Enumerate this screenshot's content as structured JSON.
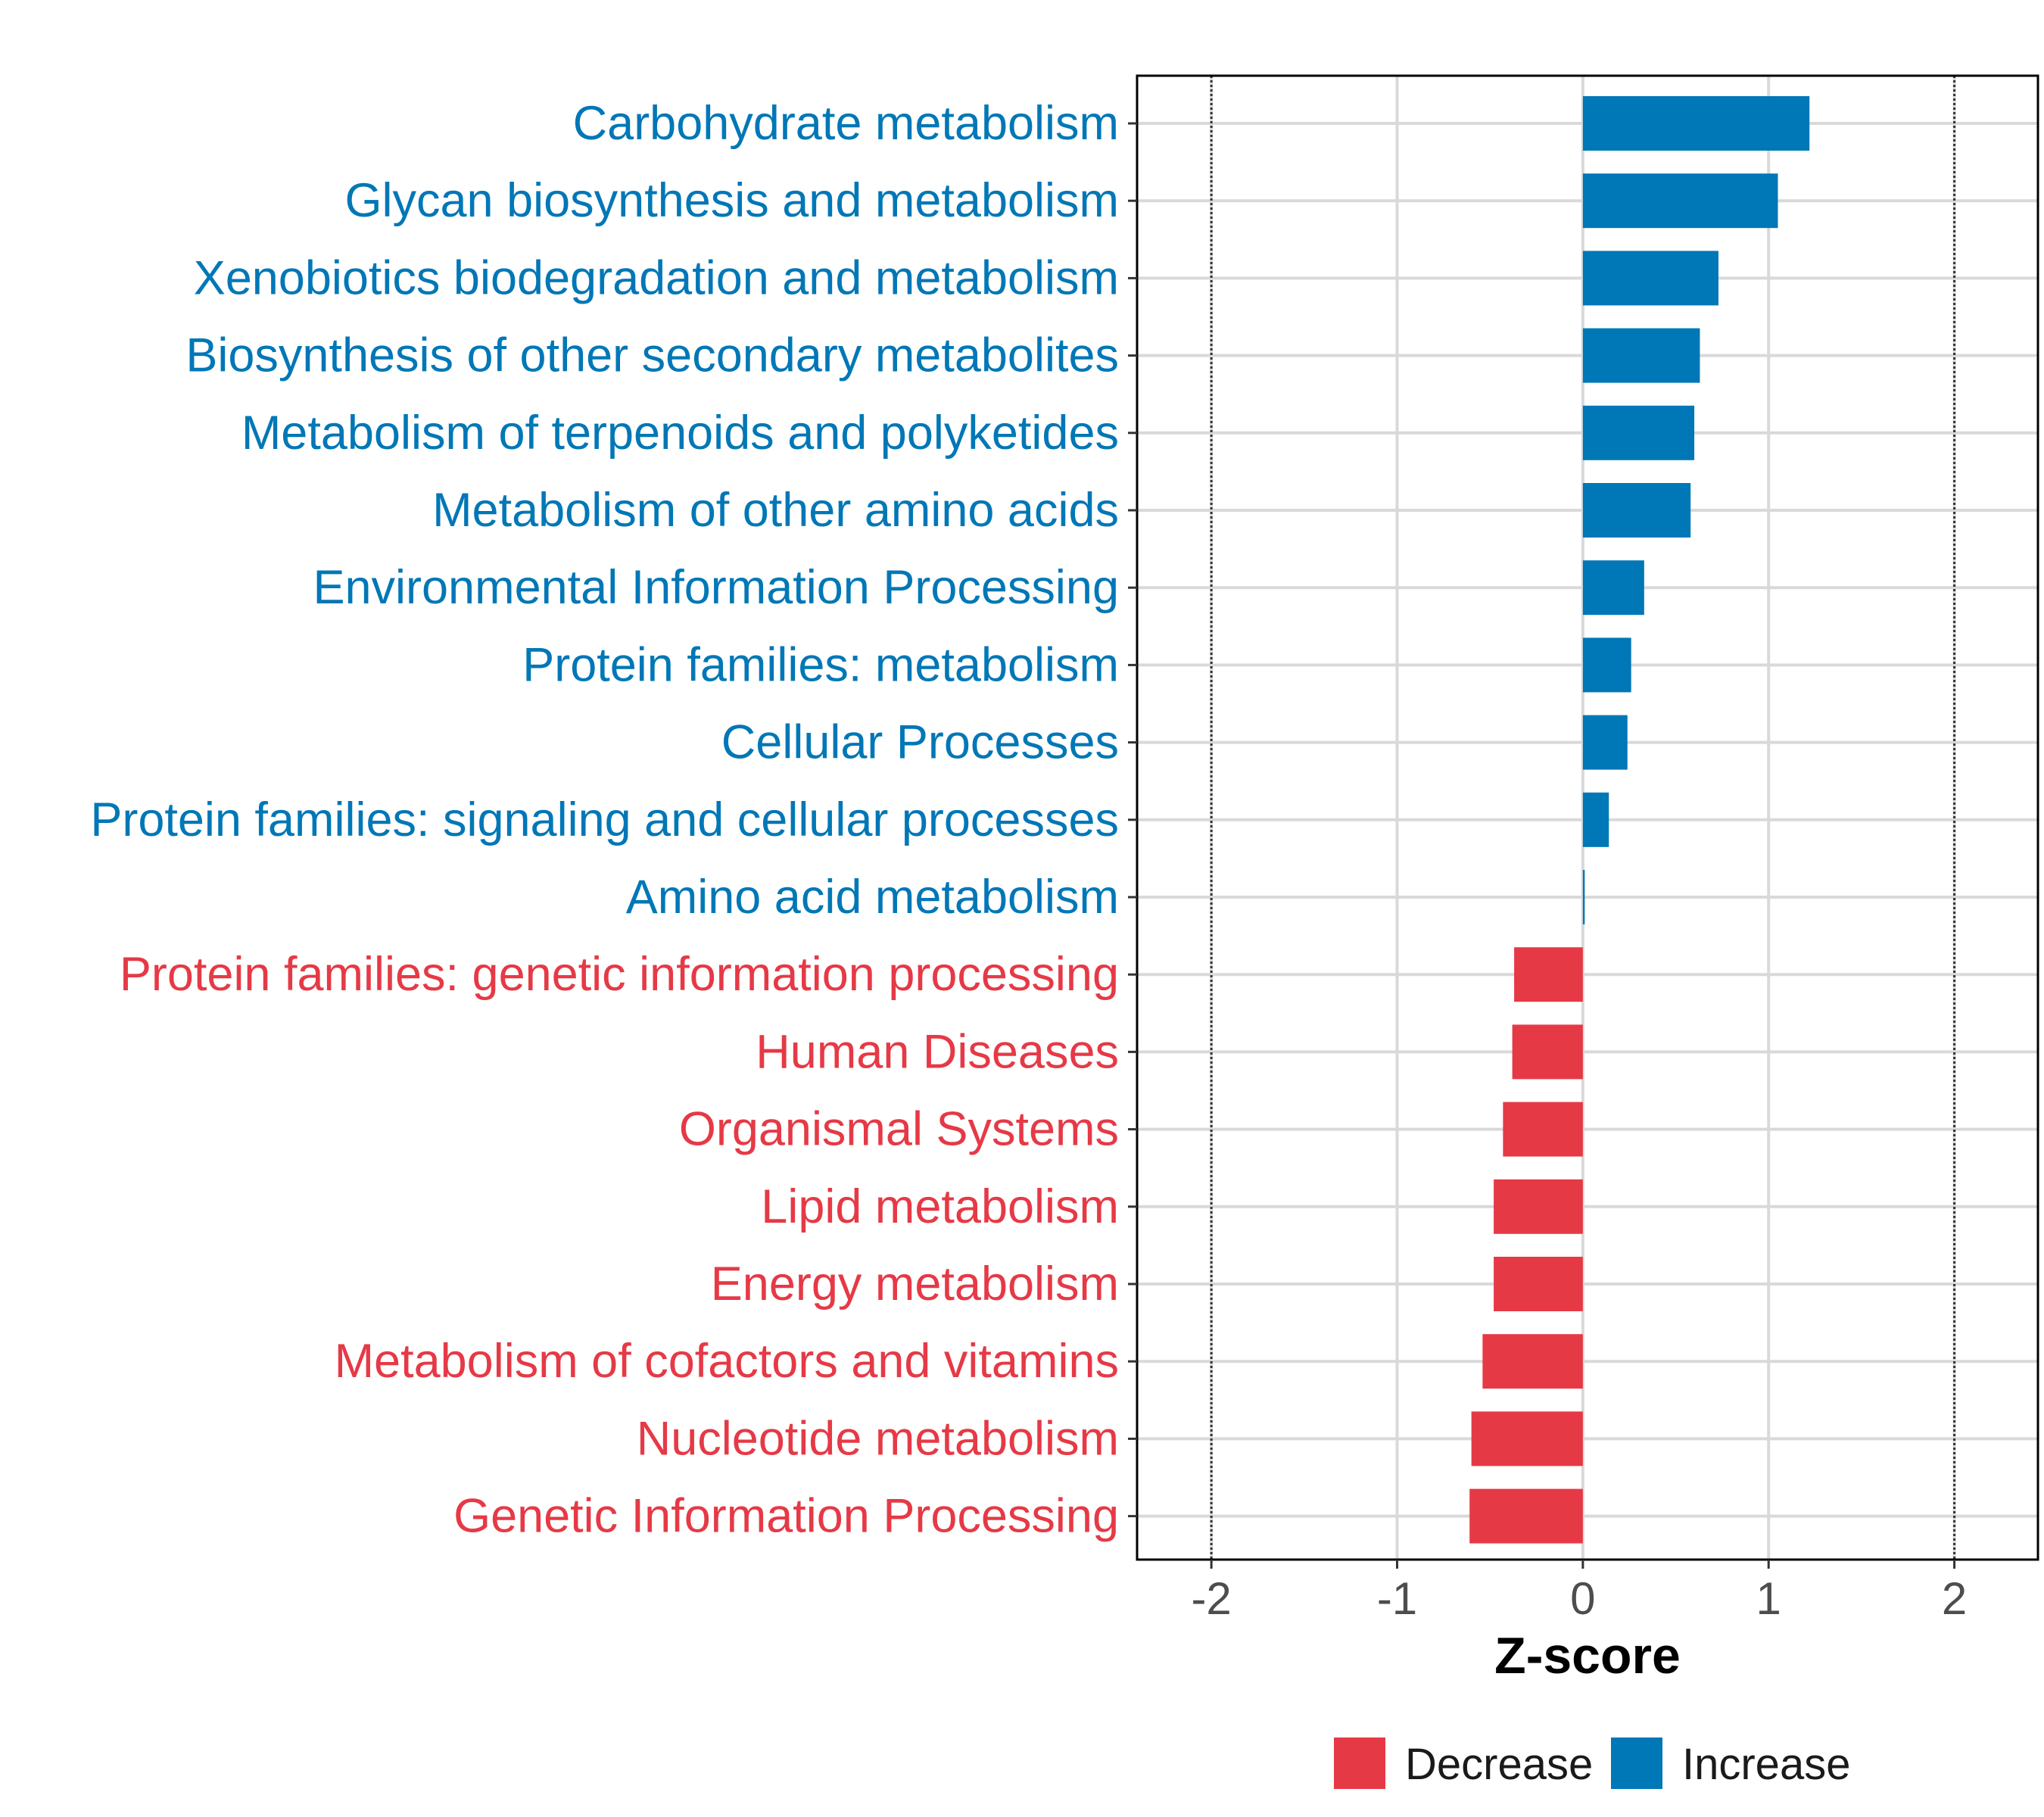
{
  "chart_data": {
    "type": "bar",
    "orientation": "horizontal",
    "title": "",
    "xlabel": "Z-score",
    "ylabel": "",
    "xlim": [
      -2.4,
      2.45
    ],
    "xticks": [
      -2,
      -1,
      0,
      1,
      2
    ],
    "xtick_labels": [
      "-2",
      "-1",
      "0",
      "1",
      "2"
    ],
    "reference_lines": [
      -2,
      2
    ],
    "grid": true,
    "legend_position": "bottom",
    "colors": {
      "Decrease": "#E63946",
      "Increase": "#0077B6"
    },
    "legend": [
      {
        "name": "Decrease",
        "color": "#E63946"
      },
      {
        "name": "Increase",
        "color": "#0077B6"
      }
    ],
    "categories": [
      "Carbohydrate metabolism",
      "Glycan biosynthesis and metabolism",
      "Xenobiotics biodegradation and metabolism",
      "Biosynthesis of other secondary metabolites",
      "Metabolism of terpenoids and polyketides",
      "Metabolism of other amino acids",
      "Environmental Information Processing",
      "Protein families: metabolism",
      "Cellular Processes",
      "Protein families: signaling and cellular processes",
      "Amino acid metabolism",
      "Protein families: genetic information processing",
      "Human Diseases",
      "Organismal Systems",
      "Lipid metabolism",
      "Energy metabolism",
      "Metabolism of cofactors and vitamins",
      "Nucleotide metabolism",
      "Genetic Information Processing"
    ],
    "values": [
      1.22,
      1.05,
      0.73,
      0.63,
      0.6,
      0.58,
      0.33,
      0.26,
      0.24,
      0.14,
      0.01,
      -0.37,
      -0.38,
      -0.43,
      -0.48,
      -0.48,
      -0.54,
      -0.6,
      -0.61
    ],
    "groups": [
      "Increase",
      "Increase",
      "Increase",
      "Increase",
      "Increase",
      "Increase",
      "Increase",
      "Increase",
      "Increase",
      "Increase",
      "Increase",
      "Decrease",
      "Decrease",
      "Decrease",
      "Decrease",
      "Decrease",
      "Decrease",
      "Decrease",
      "Decrease"
    ]
  }
}
